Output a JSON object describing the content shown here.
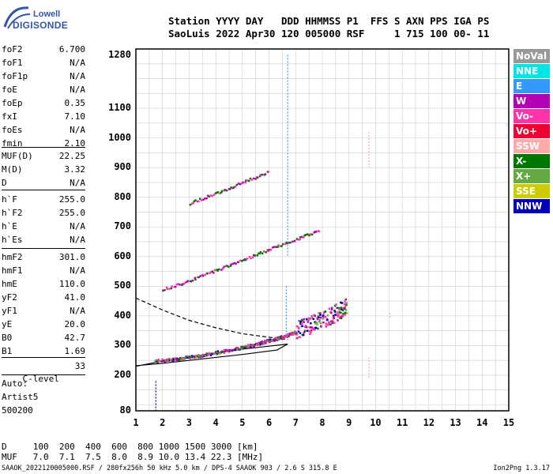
{
  "logo": {
    "top": "Lowell",
    "bottom": "DIGISONDE"
  },
  "header": {
    "line1": "Station YYYY DAY   DDD HHMMSS P1  FFS S AXN PPS IGA PS",
    "line2": "SaoLuis 2022 Apr30 120 005000 RSF     1 715 100 00- 11"
  },
  "params_group1": [
    {
      "label": "foF2",
      "value": "6.700"
    },
    {
      "label": "foF1",
      "value": "N/A"
    },
    {
      "label": "foF1p",
      "value": "N/A"
    },
    {
      "label": "foE",
      "value": "N/A"
    },
    {
      "label": "foEp",
      "value": "0.35"
    },
    {
      "label": "fxI",
      "value": "7.10"
    },
    {
      "label": "foEs",
      "value": "N/A"
    },
    {
      "label": "fmin",
      "value": "2.10"
    }
  ],
  "params_group2": [
    {
      "label": "MUF(D)",
      "value": "22.25"
    },
    {
      "label": "M(D)",
      "value": "3.32"
    },
    {
      "label": "D",
      "value": "N/A"
    }
  ],
  "params_group3": [
    {
      "label": "h`F",
      "value": "255.0"
    },
    {
      "label": "h`F2",
      "value": "255.0"
    },
    {
      "label": "h`E",
      "value": "N/A"
    },
    {
      "label": "h`Es",
      "value": "N/A"
    }
  ],
  "params_group4": [
    {
      "label": "hmF2",
      "value": "301.0"
    },
    {
      "label": "hmF1",
      "value": "N/A"
    },
    {
      "label": "hmE",
      "value": "110.0"
    },
    {
      "label": "yF2",
      "value": "41.0"
    },
    {
      "label": "yF1",
      "value": "N/A"
    },
    {
      "label": "yE",
      "value": "20.0"
    },
    {
      "label": "B0",
      "value": "42.7"
    },
    {
      "label": "B1",
      "value": "1.69"
    }
  ],
  "clevel": {
    "label": "C-level",
    "value": "33"
  },
  "auto": [
    "Auto:",
    "Artist5",
    "500200"
  ],
  "legend": [
    {
      "label": "NoVal",
      "color": "#999999"
    },
    {
      "label": "NNE",
      "color": "#00e6e6"
    },
    {
      "label": "E",
      "color": "#3399ff"
    },
    {
      "label": "W",
      "color": "#b300b3"
    },
    {
      "label": "Vo-",
      "color": "#ff33aa"
    },
    {
      "label": "Vo+",
      "color": "#ee0033"
    },
    {
      "label": "SSW",
      "color": "#ffaaaa"
    },
    {
      "label": "X-",
      "color": "#007700"
    },
    {
      "label": "X+",
      "color": "#66aa44"
    },
    {
      "label": "SSE",
      "color": "#cccc00"
    },
    {
      "label": "NNW",
      "color": "#0000bb"
    }
  ],
  "chart_data": {
    "type": "scatter",
    "xlim": [
      1,
      15
    ],
    "ylim": [
      80,
      1300
    ],
    "x_ticks": [
      "1",
      "2",
      "3",
      "4",
      "5",
      "6",
      "7",
      "8",
      "9",
      "10",
      "11",
      "12",
      "13",
      "14",
      "15"
    ],
    "y_ticks": [
      "80",
      "200",
      "300",
      "400",
      "500",
      "600",
      "700",
      "800",
      "900",
      "1000",
      "1100",
      "1280"
    ],
    "y_tick_values": [
      80,
      200,
      300,
      400,
      500,
      600,
      700,
      800,
      900,
      1000,
      1100,
      1280
    ],
    "grid": true,
    "traces": [
      {
        "name": "o-trace 1st hop",
        "points": [
          [
            1.7,
            248
          ],
          [
            2.5,
            255
          ],
          [
            3.5,
            268
          ],
          [
            4.5,
            285
          ],
          [
            5.5,
            305
          ],
          [
            6.0,
            318
          ],
          [
            6.5,
            330
          ],
          [
            7.0,
            345
          ],
          [
            7.5,
            360
          ],
          [
            8.0,
            380
          ],
          [
            8.5,
            400
          ],
          [
            8.9,
            420
          ]
        ]
      },
      {
        "name": "2nd hop",
        "points": [
          [
            2.0,
            490
          ],
          [
            3.0,
            520
          ],
          [
            4.0,
            555
          ],
          [
            5.0,
            590
          ],
          [
            6.0,
            625
          ],
          [
            7.0,
            660
          ],
          [
            7.9,
            690
          ]
        ]
      },
      {
        "name": "3rd hop",
        "points": [
          [
            3.0,
            780
          ],
          [
            4.0,
            815
          ],
          [
            5.0,
            850
          ],
          [
            6.0,
            890
          ]
        ]
      }
    ],
    "profile_dashed": [
      [
        1,
        460
      ],
      [
        2,
        420
      ],
      [
        3,
        385
      ],
      [
        4,
        360
      ],
      [
        5,
        340
      ],
      [
        6,
        328
      ],
      [
        6.7,
        320
      ]
    ],
    "profile_solid": [
      [
        1,
        230
      ],
      [
        2,
        248
      ],
      [
        3,
        262
      ],
      [
        4,
        275
      ],
      [
        5,
        288
      ],
      [
        6,
        298
      ],
      [
        6.7,
        305
      ],
      [
        6.3,
        285
      ],
      [
        5,
        270
      ],
      [
        3.5,
        255
      ],
      [
        2,
        240
      ],
      [
        1,
        232
      ]
    ]
  },
  "footer": {
    "d_line": "D     100  200  400  600  800 1000 1500 3000 [km]",
    "muf_line": "MUF   7.0  7.1  7.5  8.0  8.9 10.0 13.4 22.3 [MHz]",
    "file_line": "SAAOK_2022120005000.RSF / 280fx256h 50 kHz 5.0 km / DPS-4 SAAOK 903 / 2.6 S 315.8 E",
    "version": "Ion2Png 1.3.17"
  }
}
